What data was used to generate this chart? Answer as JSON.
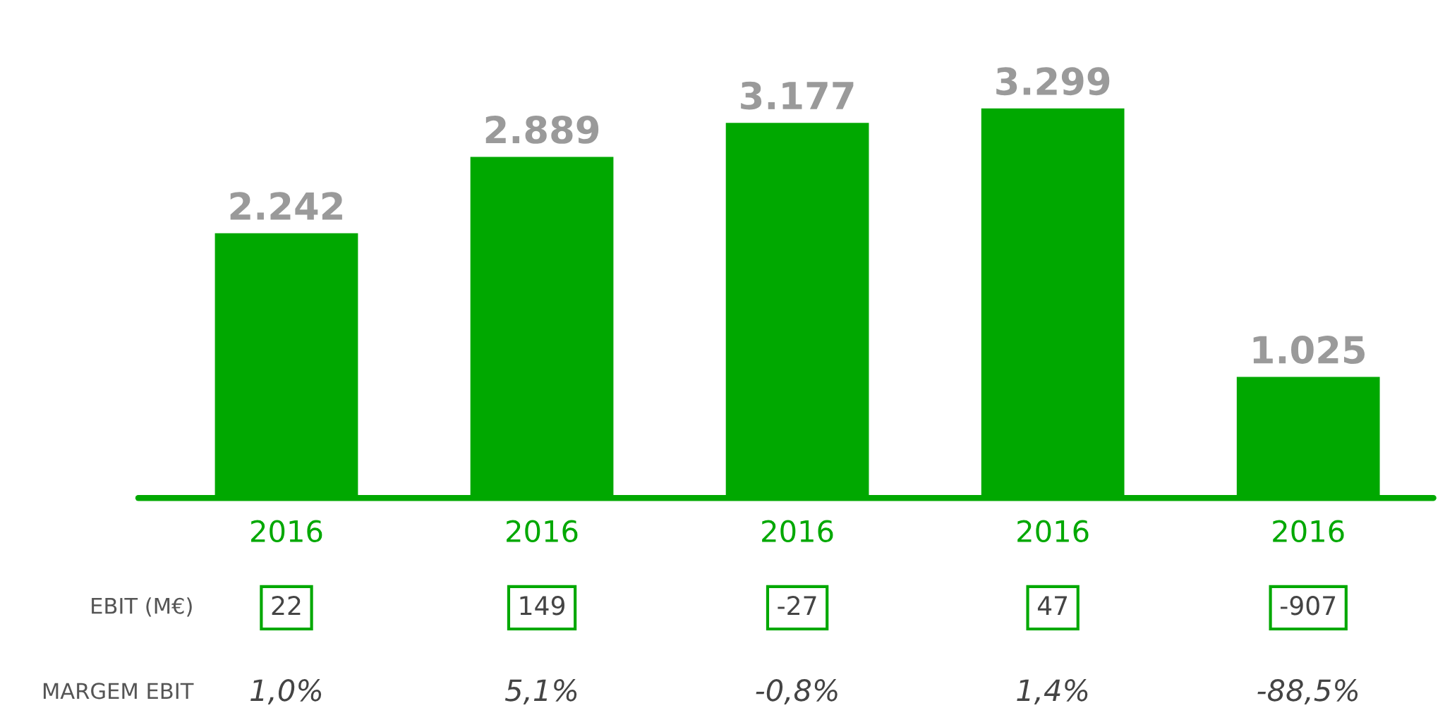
{
  "chart_data": {
    "type": "bar",
    "categories": [
      "2016",
      "2016",
      "2016",
      "2016",
      "2016"
    ],
    "values": [
      2242,
      2889,
      3177,
      3299,
      1025
    ],
    "value_labels": [
      "2.242",
      "2.889",
      "3.177",
      "3.299",
      "1.025"
    ],
    "color": "#00a800",
    "grid": false,
    "legend": false,
    "annotations": [
      "EBIT (M€)",
      "22",
      "149",
      "-27",
      "47",
      "-907",
      "MARGEM EBIT",
      "1,0%",
      "5,1%",
      "-0,8%",
      "1,4%",
      "-88,5%"
    ]
  }
}
